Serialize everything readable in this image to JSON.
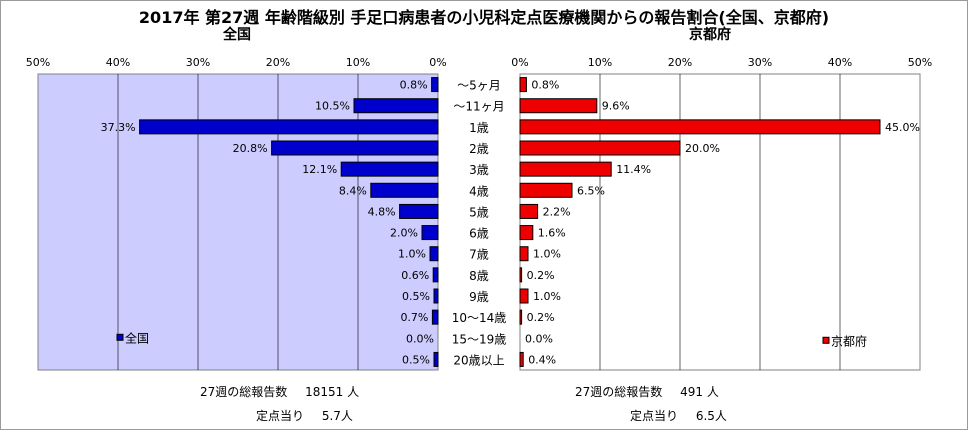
{
  "title": "2017年 第27週 年齢階級別 手足口病患者の小児科定点医療機関からの報告割合(全国、京都府)",
  "chart_data": [
    {
      "type": "bar",
      "orientation": "horizontal",
      "direction": "right-to-left",
      "title": "全国",
      "categories": [
        "〜5ヶ月",
        "〜11ヶ月",
        "1歳",
        "2歳",
        "3歳",
        "4歳",
        "5歳",
        "6歳",
        "7歳",
        "8歳",
        "9歳",
        "10〜14歳",
        "15〜19歳",
        "20歳以上"
      ],
      "series": [
        {
          "name": "全国",
          "values": [
            0.8,
            10.5,
            37.3,
            20.8,
            12.1,
            8.4,
            4.8,
            2.0,
            1.0,
            0.6,
            0.5,
            0.7,
            0.0,
            0.5
          ]
        }
      ],
      "value_labels": [
        "0.8%",
        "10.5%",
        "37.3%",
        "20.8%",
        "12.1%",
        "8.4%",
        "4.8%",
        "2.0%",
        "1.0%",
        "0.6%",
        "0.5%",
        "0.7%",
        "0.0%",
        "0.5%"
      ],
      "xlim": [
        0,
        50
      ],
      "xticks": [
        "50%",
        "40%",
        "30%",
        "20%",
        "10%",
        "0%"
      ],
      "legend_position": "bottom-left",
      "bar_color": "#0000cc",
      "plot_background": "#ccccff"
    },
    {
      "type": "bar",
      "orientation": "horizontal",
      "direction": "left-to-right",
      "title": "京都府",
      "categories": [
        "〜5ヶ月",
        "〜11ヶ月",
        "1歳",
        "2歳",
        "3歳",
        "4歳",
        "5歳",
        "6歳",
        "7歳",
        "8歳",
        "9歳",
        "10〜14歳",
        "15〜19歳",
        "20歳以上"
      ],
      "series": [
        {
          "name": "京都府",
          "values": [
            0.8,
            9.6,
            45.0,
            20.0,
            11.4,
            6.5,
            2.2,
            1.6,
            1.0,
            0.2,
            1.0,
            0.2,
            0.0,
            0.4
          ]
        }
      ],
      "value_labels": [
        "0.8%",
        "9.6%",
        "45.0%",
        "20.0%",
        "11.4%",
        "6.5%",
        "2.2%",
        "1.6%",
        "1.0%",
        "0.2%",
        "1.0%",
        "0.2%",
        "0.0%",
        "0.4%"
      ],
      "xlim": [
        0,
        50
      ],
      "xticks": [
        "0%",
        "10%",
        "20%",
        "30%",
        "40%",
        "50%"
      ],
      "legend_position": "bottom-right",
      "bar_color": "#ee0000",
      "plot_background": "#ffffff"
    }
  ],
  "footer": {
    "national": {
      "total_label": "27週の総報告数",
      "total_value": "18151 人",
      "per_site_label": "定点当り",
      "per_site_value": "5.7人"
    },
    "kyoto": {
      "total_label": "27週の総報告数",
      "total_value": "491 人",
      "per_site_label": "定点当り",
      "per_site_value": "6.5人"
    }
  },
  "colors": {
    "national_bar": "#0000cc",
    "kyoto_bar": "#ee0000",
    "national_plot_bg": "#ccccff",
    "grid": "#000000"
  }
}
